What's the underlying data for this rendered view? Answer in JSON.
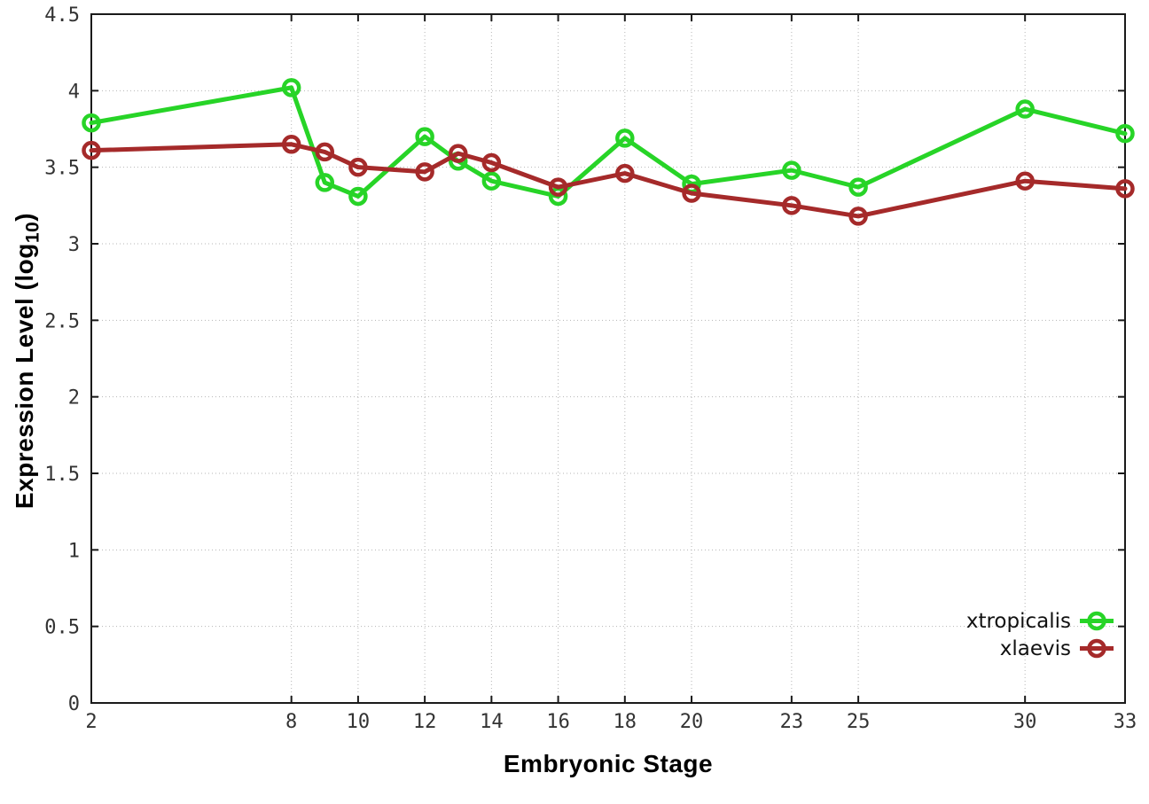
{
  "chart_data": {
    "type": "line",
    "title": "",
    "xlabel": "Embryonic Stage",
    "ylabel": "Expression Level (log10)",
    "ylabel_parts": {
      "pre": "Expression Level (log",
      "sub": "10",
      "post": ")"
    },
    "x": [
      2,
      8,
      9,
      10,
      12,
      13,
      14,
      16,
      18,
      20,
      23,
      25,
      30,
      33
    ],
    "series": [
      {
        "name": "xtropicalis",
        "color": "#27d427",
        "values": [
          3.79,
          4.02,
          3.4,
          3.31,
          3.7,
          3.54,
          3.41,
          3.31,
          3.69,
          3.39,
          3.48,
          3.37,
          3.88,
          3.72
        ]
      },
      {
        "name": "xlaevis",
        "color": "#a52a2a",
        "values": [
          3.61,
          3.65,
          3.6,
          3.5,
          3.47,
          3.59,
          3.53,
          3.37,
          3.46,
          3.33,
          3.25,
          3.18,
          3.41,
          3.36
        ]
      }
    ],
    "xlim": [
      2,
      33
    ],
    "ylim": [
      0,
      4.5
    ],
    "xtick_values": [
      2,
      8,
      10,
      12,
      14,
      16,
      18,
      20,
      23,
      25,
      30,
      33
    ],
    "xticks": [
      "2",
      "8",
      "10",
      "12",
      "14",
      "16",
      "18",
      "20",
      "23",
      "25",
      "30",
      "33"
    ],
    "ytick_values": [
      0,
      0.5,
      1,
      1.5,
      2,
      2.5,
      3,
      3.5,
      4,
      4.5
    ],
    "yticks": [
      "0",
      "0.5",
      "1",
      "1.5",
      "2",
      "2.5",
      "3",
      "3.5",
      "4",
      "4.5"
    ],
    "grid": true,
    "legend_position": "inside-bottom-right",
    "marker": "open-circle",
    "colors": {
      "grid": "#b5b5b5",
      "border": "#1a1a1a",
      "tick_text": "#333333"
    }
  }
}
